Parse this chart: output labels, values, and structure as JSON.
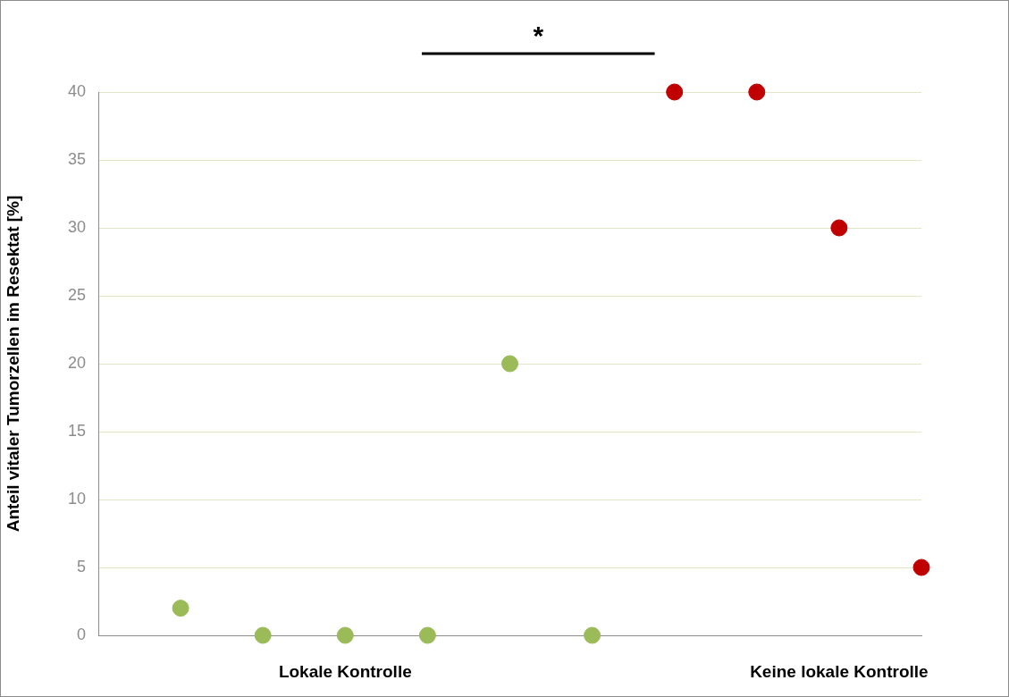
{
  "chart_data": {
    "type": "scatter",
    "ylabel": "Anteil vitaler Tumorzellen im Resektat [%]",
    "categories": [
      null,
      null,
      "Lokale Kontrolle",
      null,
      null,
      null,
      null,
      null,
      "Keine lokale Kontrolle",
      null
    ],
    "series": [
      {
        "color": "#9bbb59",
        "values": [
          2,
          0,
          0,
          0,
          20,
          0,
          null,
          null,
          null,
          null
        ]
      },
      {
        "color": "#c00000",
        "values": [
          null,
          null,
          null,
          null,
          null,
          null,
          40,
          40,
          30,
          5
        ]
      }
    ],
    "ylim": [
      0,
      40
    ],
    "yticks": [
      0,
      5,
      10,
      15,
      20,
      25,
      30,
      35,
      40
    ],
    "grid": "y",
    "legend": false,
    "marker": "circle",
    "annotations": [
      "*"
    ]
  }
}
